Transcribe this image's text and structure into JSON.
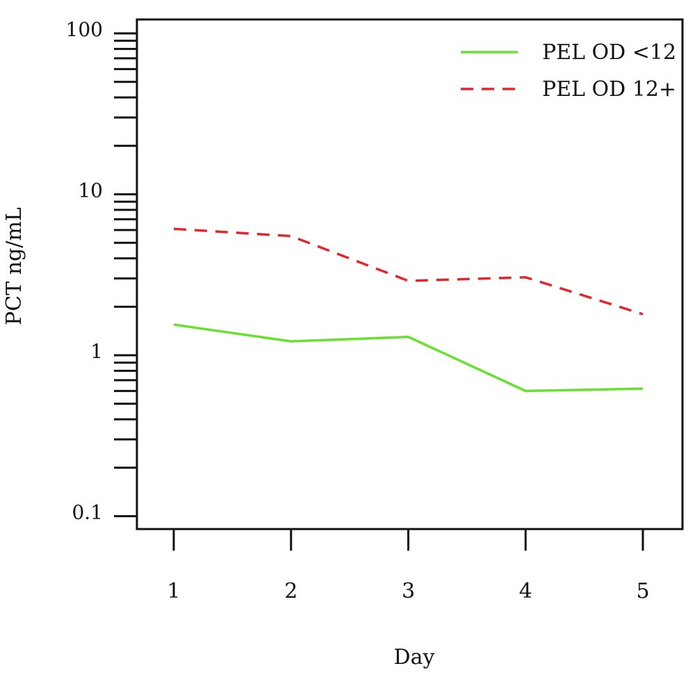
{
  "chart_data": {
    "type": "line",
    "title": "",
    "xlabel": "Day",
    "ylabel": "PCT ng/mL",
    "x": [
      1,
      2,
      3,
      4,
      5
    ],
    "x_tick_labels": [
      "1",
      "2",
      "3",
      "4",
      "5"
    ],
    "y_scale": "log",
    "ylim": [
      0.08,
      100
    ],
    "y_tick_labels": [
      "100",
      "10",
      "1",
      "0.1"
    ],
    "y_tick_values": [
      100,
      10,
      1,
      0.1
    ],
    "grid": false,
    "legend_position": "top-right",
    "series": [
      {
        "name": "PEL OD <12",
        "values": [
          1.55,
          1.22,
          1.3,
          0.6,
          0.62
        ],
        "color": "#66e22e",
        "line_style": "solid"
      },
      {
        "name": "PEL OD 12+",
        "values": [
          6.1,
          5.5,
          2.9,
          3.05,
          1.8
        ],
        "color": "#e3262c",
        "line_style": "dashed"
      }
    ]
  }
}
